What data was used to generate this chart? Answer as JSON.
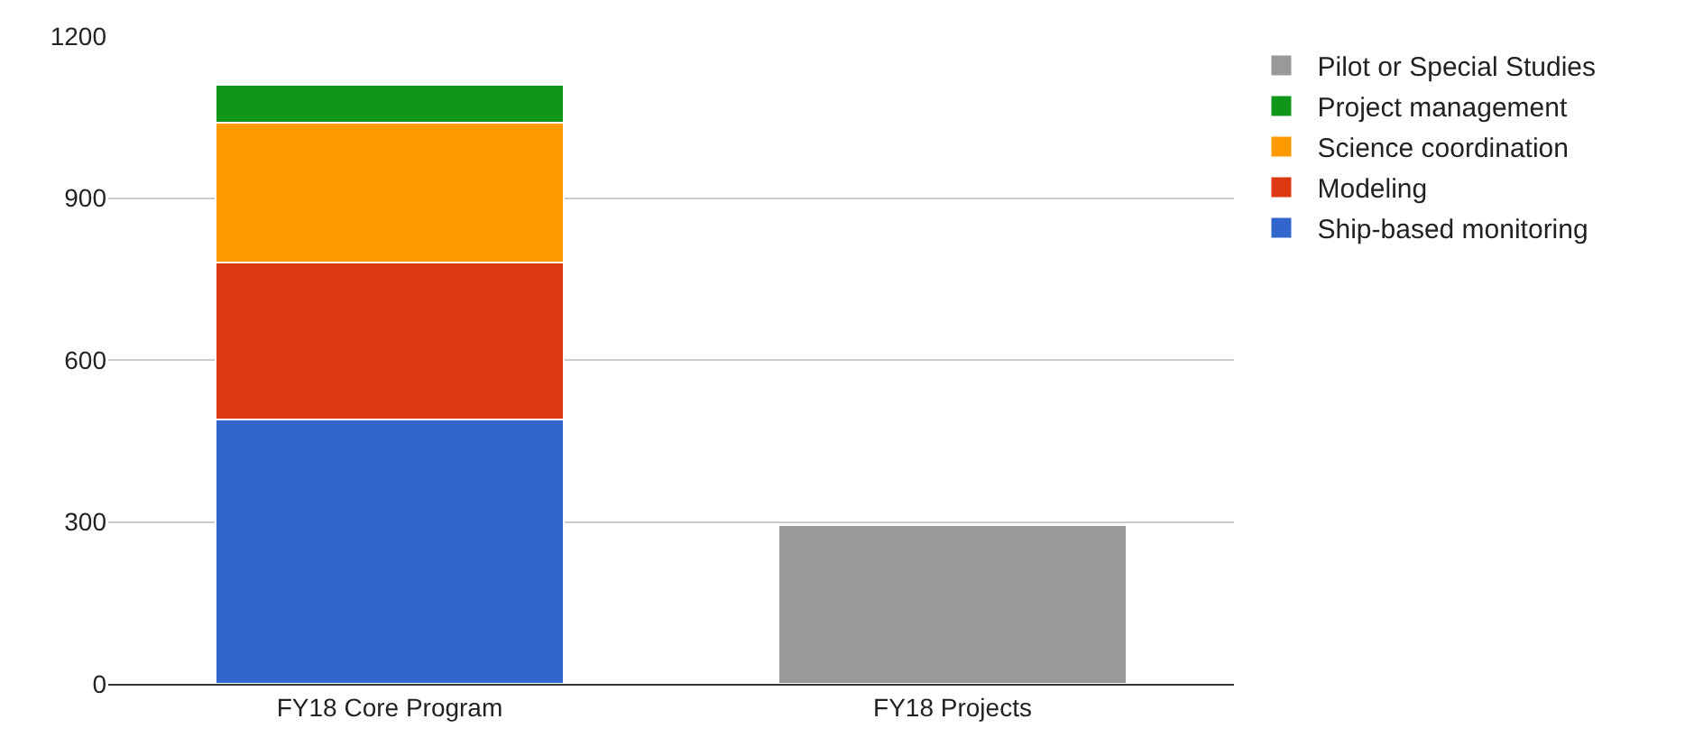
{
  "chart_data": {
    "type": "bar",
    "stacked": true,
    "categories": [
      "FY18 Core Program",
      "FY18 Projects"
    ],
    "series": [
      {
        "name": "Ship-based monitoring",
        "color": "#3366cc",
        "values": [
          490,
          null
        ]
      },
      {
        "name": "Modeling",
        "color": "#dc3912",
        "values": [
          290,
          null
        ]
      },
      {
        "name": "Science coordination",
        "color": "#ff9900",
        "values": [
          260,
          null
        ]
      },
      {
        "name": "Project management",
        "color": "#109618",
        "values": [
          70,
          null
        ]
      },
      {
        "name": "Pilot or Special Studies",
        "color": "#999999",
        "values": [
          null,
          295
        ]
      }
    ],
    "ylim": [
      0,
      1200
    ],
    "yticks": [
      0,
      300,
      600,
      900,
      1200
    ],
    "grid": "y",
    "legend": "top right"
  }
}
